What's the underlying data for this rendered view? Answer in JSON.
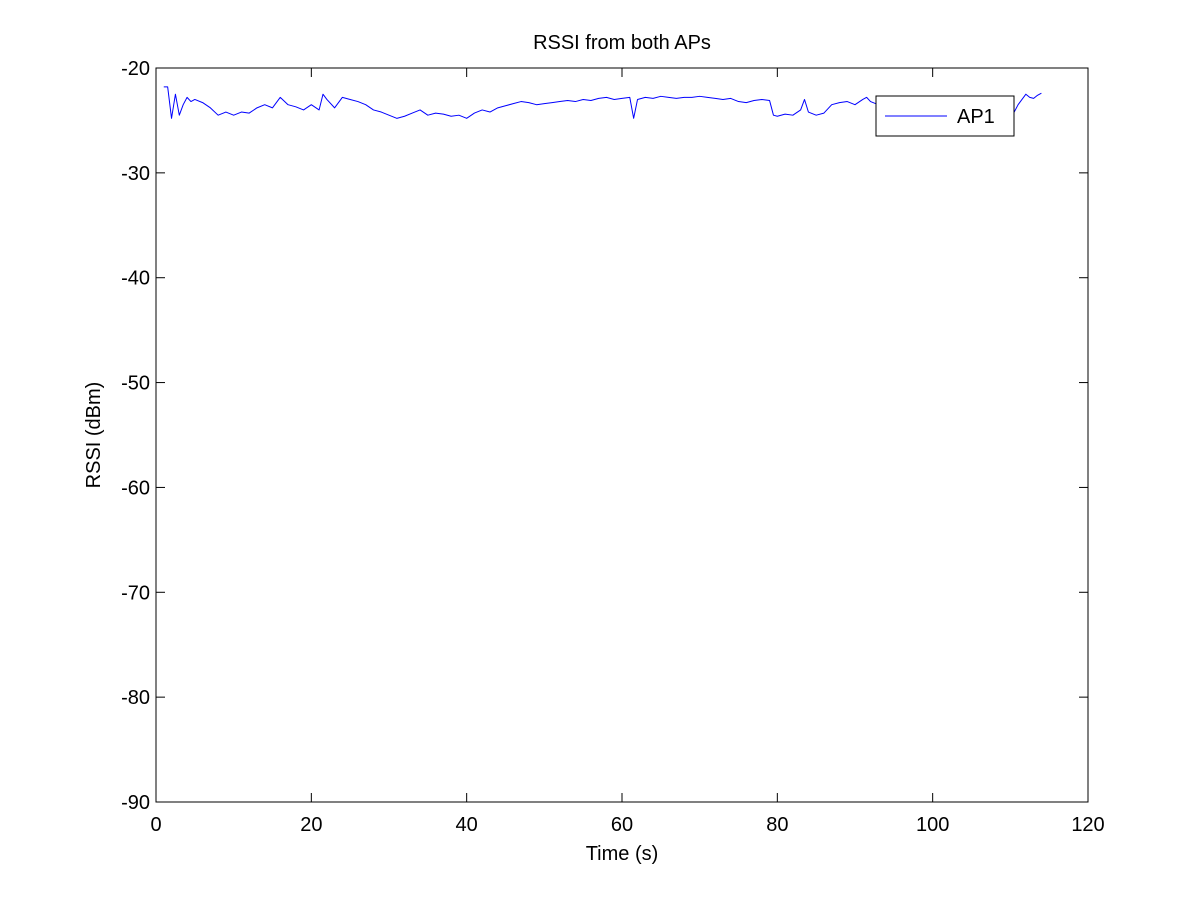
{
  "chart_data": {
    "type": "line",
    "title": "RSSI from both APs",
    "xlabel": "Time (s)",
    "ylabel": "RSSI (dBm)",
    "xlim": [
      0,
      120
    ],
    "ylim": [
      -90,
      -20
    ],
    "xticks": [
      0,
      20,
      40,
      60,
      80,
      100,
      120
    ],
    "yticks": [
      -90,
      -80,
      -70,
      -60,
      -50,
      -40,
      -30,
      -20
    ],
    "xtick_labels": [
      "0",
      "20",
      "40",
      "60",
      "80",
      "100",
      "120"
    ],
    "ytick_labels": [
      "-90",
      "-80",
      "-70",
      "-60",
      "-50",
      "-40",
      "-30",
      "-20"
    ],
    "grid": false,
    "legend_position": "top-right",
    "colors": {
      "series": "#0000ff",
      "axes": "#000000",
      "background": "#ffffff"
    },
    "series": [
      {
        "name": "AP1",
        "x": [
          1.0,
          1.5,
          2.0,
          2.5,
          3.0,
          3.5,
          4.0,
          4.5,
          5.0,
          6.0,
          7.0,
          8.0,
          9.0,
          10.0,
          11.0,
          12.0,
          13.0,
          14.0,
          15.0,
          16.0,
          17.0,
          18.0,
          19.0,
          20.0,
          21.0,
          21.5,
          22.0,
          23.0,
          24.0,
          25.0,
          26.0,
          27.0,
          28.0,
          29.0,
          30.0,
          31.0,
          32.0,
          33.0,
          34.0,
          35.0,
          36.0,
          37.0,
          38.0,
          39.0,
          40.0,
          41.0,
          42.0,
          43.0,
          44.0,
          45.0,
          46.0,
          47.0,
          48.0,
          49.0,
          50.0,
          51.0,
          52.0,
          53.0,
          54.0,
          55.0,
          56.0,
          57.0,
          58.0,
          59.0,
          60.0,
          61.0,
          61.5,
          62.0,
          63.0,
          64.0,
          65.0,
          66.0,
          67.0,
          68.0,
          69.0,
          70.0,
          71.0,
          72.0,
          73.0,
          74.0,
          75.0,
          76.0,
          77.0,
          78.0,
          79.0,
          79.5,
          80.0,
          81.0,
          82.0,
          83.0,
          83.5,
          84.0,
          85.0,
          86.0,
          87.0,
          88.0,
          89.0,
          90.0,
          91.0,
          91.5,
          92.0,
          93.0,
          94.0,
          95.0,
          96.0,
          97.0,
          98.0,
          99.0,
          100.0,
          101.0,
          102.0,
          103.0,
          104.0,
          105.0,
          106.0,
          107.0,
          108.0,
          109.0,
          110.0,
          110.5,
          111.0,
          111.5,
          112.0,
          112.5,
          113.0,
          113.5,
          114.0
        ],
        "y": [
          -21.8,
          -21.8,
          -24.8,
          -22.5,
          -24.5,
          -23.5,
          -22.8,
          -23.2,
          -23.0,
          -23.3,
          -23.8,
          -24.5,
          -24.2,
          -24.5,
          -24.2,
          -24.3,
          -23.8,
          -23.5,
          -23.8,
          -22.8,
          -23.5,
          -23.7,
          -24.0,
          -23.5,
          -24.0,
          -22.5,
          -23.0,
          -23.8,
          -22.8,
          -23.0,
          -23.2,
          -23.5,
          -24.0,
          -24.2,
          -24.5,
          -24.8,
          -24.6,
          -24.3,
          -24.0,
          -24.5,
          -24.3,
          -24.4,
          -24.6,
          -24.5,
          -24.8,
          -24.3,
          -24.0,
          -24.2,
          -23.8,
          -23.6,
          -23.4,
          -23.2,
          -23.3,
          -23.5,
          -23.4,
          -23.3,
          -23.2,
          -23.1,
          -23.2,
          -23.0,
          -23.1,
          -22.9,
          -22.8,
          -23.0,
          -22.9,
          -22.8,
          -24.8,
          -23.0,
          -22.8,
          -22.9,
          -22.7,
          -22.8,
          -22.9,
          -22.8,
          -22.8,
          -22.7,
          -22.8,
          -22.9,
          -23.0,
          -22.9,
          -23.2,
          -23.3,
          -23.1,
          -23.0,
          -23.1,
          -24.5,
          -24.6,
          -24.4,
          -24.5,
          -24.0,
          -23.0,
          -24.2,
          -24.5,
          -24.3,
          -23.5,
          -23.3,
          -23.2,
          -23.5,
          -23.0,
          -22.8,
          -23.2,
          -23.5,
          -24.0,
          -24.2,
          -24.3,
          -24.1,
          -24.2,
          -24.0,
          -24.3,
          -24.5,
          -24.2,
          -24.4,
          -24.3,
          -24.2,
          -24.0,
          -24.5,
          -24.3,
          -24.8,
          -24.5,
          -24.2,
          -23.5,
          -23.0,
          -22.5,
          -22.8,
          -22.9,
          -22.6,
          -22.4
        ]
      }
    ]
  }
}
